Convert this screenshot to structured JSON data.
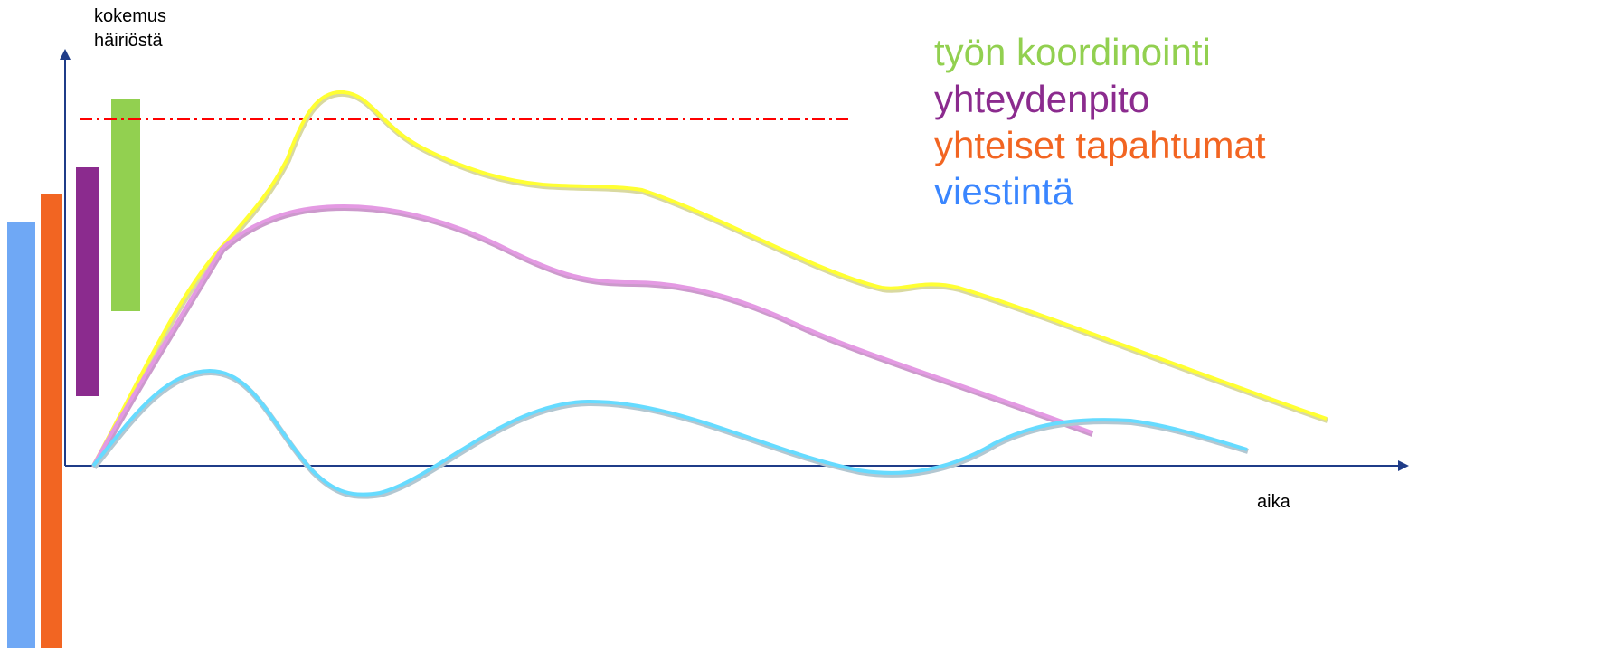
{
  "axes": {
    "y_label_line1": "kokemus",
    "y_label_line2": "häiriöstä",
    "x_label": "aika",
    "axis_color": "#1f3c88"
  },
  "legend": [
    {
      "label": "työn koordinointi",
      "color": "#92d050"
    },
    {
      "label": "yhteydenpito",
      "color": "#8b2b8e"
    },
    {
      "label": "yhteiset tapahtumat",
      "color": "#f26522"
    },
    {
      "label": "viestintä",
      "color": "#3a86ff"
    }
  ],
  "side_bars": [
    {
      "name": "viestintä",
      "color": "#6fa8f5"
    },
    {
      "name": "yhteiset tapahtumat",
      "color": "#f26522"
    },
    {
      "name": "yhteydenpito",
      "color": "#8b2b8e"
    },
    {
      "name": "työn koordinointi",
      "color": "#92d050"
    }
  ],
  "curves": [
    {
      "name": "työn koordinointi",
      "color": "#ffff33",
      "shadow": "#d9d9a0"
    },
    {
      "name": "yhteydenpito",
      "color": "#e49ae3",
      "shadow": "#cc99cc"
    },
    {
      "name": "viestintä",
      "color": "#66dbff",
      "shadow": "#b3c7d1"
    }
  ],
  "threshold": {
    "color": "#ff0000"
  }
}
